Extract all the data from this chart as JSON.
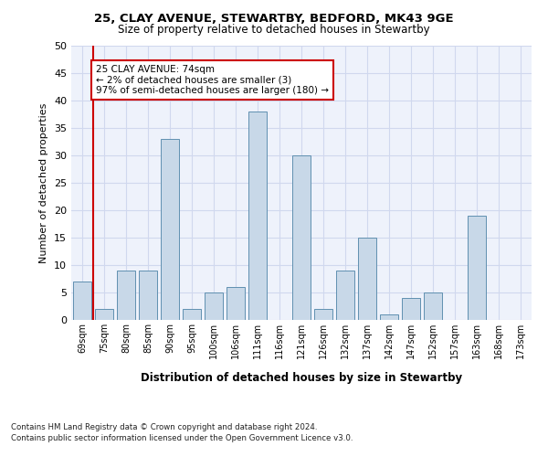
{
  "title1": "25, CLAY AVENUE, STEWARTBY, BEDFORD, MK43 9GE",
  "title2": "Size of property relative to detached houses in Stewartby",
  "xlabel": "Distribution of detached houses by size in Stewartby",
  "ylabel": "Number of detached properties",
  "categories": [
    "69sqm",
    "75sqm",
    "80sqm",
    "85sqm",
    "90sqm",
    "95sqm",
    "100sqm",
    "106sqm",
    "111sqm",
    "116sqm",
    "121sqm",
    "126sqm",
    "132sqm",
    "137sqm",
    "142sqm",
    "147sqm",
    "152sqm",
    "157sqm",
    "163sqm",
    "168sqm",
    "173sqm"
  ],
  "values": [
    7,
    2,
    9,
    9,
    33,
    2,
    5,
    6,
    38,
    0,
    30,
    2,
    9,
    15,
    1,
    4,
    5,
    0,
    19,
    0,
    0
  ],
  "bar_color": "#c8d8e8",
  "bar_edge_color": "#6090b0",
  "highlight_line_color": "#cc0000",
  "annotation_text": "25 CLAY AVENUE: 74sqm\n← 2% of detached houses are smaller (3)\n97% of semi-detached houses are larger (180) →",
  "annotation_box_color": "#ffffff",
  "annotation_box_edge_color": "#cc0000",
  "ylim": [
    0,
    50
  ],
  "yticks": [
    0,
    5,
    10,
    15,
    20,
    25,
    30,
    35,
    40,
    45,
    50
  ],
  "bg_color": "#eef2fb",
  "grid_color": "#d0d8ee",
  "footnote1": "Contains HM Land Registry data © Crown copyright and database right 2024.",
  "footnote2": "Contains public sector information licensed under the Open Government Licence v3.0."
}
